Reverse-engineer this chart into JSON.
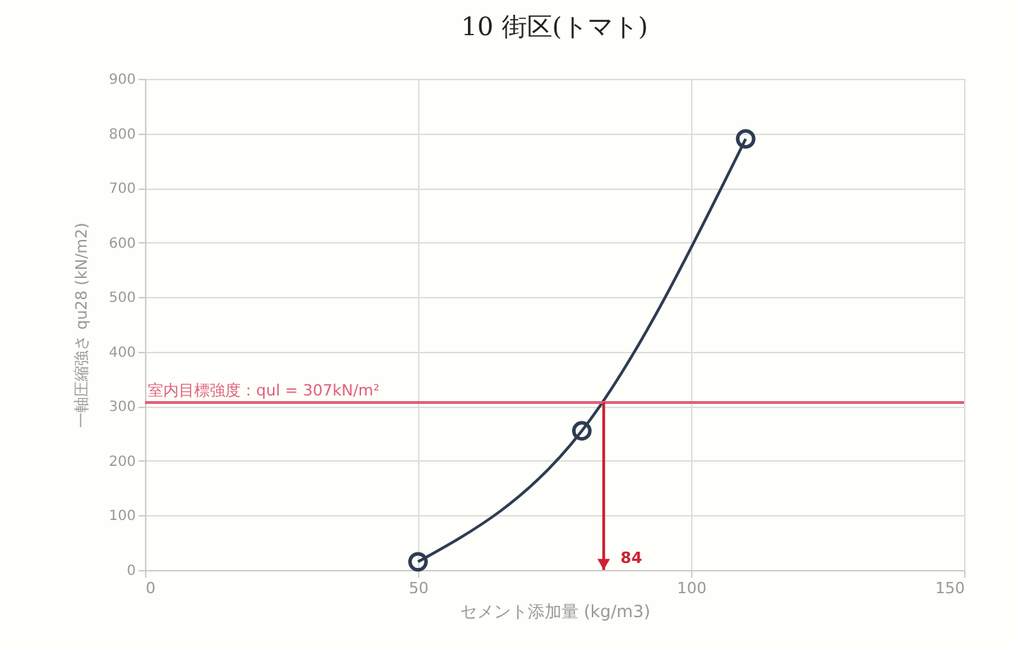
{
  "chart_data": {
    "type": "line",
    "title": "10 街区(トマト)",
    "xlabel": "セメント添加量 (kg/m3)",
    "ylabel": "一軸圧縮強さ qu28 (kN/m2)",
    "x": [
      50,
      80,
      110
    ],
    "series": [
      {
        "color": "#2f3b52",
        "values": [
          15,
          255,
          790
        ]
      }
    ],
    "marker": "circle",
    "xlim": [
      0,
      150
    ],
    "xticks": [
      0,
      50,
      100,
      150
    ],
    "ylim": [
      0,
      900
    ],
    "yticks": [
      0,
      100,
      200,
      300,
      400,
      500,
      600,
      700,
      800,
      900
    ],
    "grid": true,
    "ref_lines": [
      {
        "axis": "y",
        "value": 307,
        "label": "室内目標強度：qul = 307kN/m²",
        "color": "#e0607a"
      },
      {
        "axis": "x",
        "value": 84,
        "label": "84",
        "color": "#cc2233"
      }
    ]
  }
}
